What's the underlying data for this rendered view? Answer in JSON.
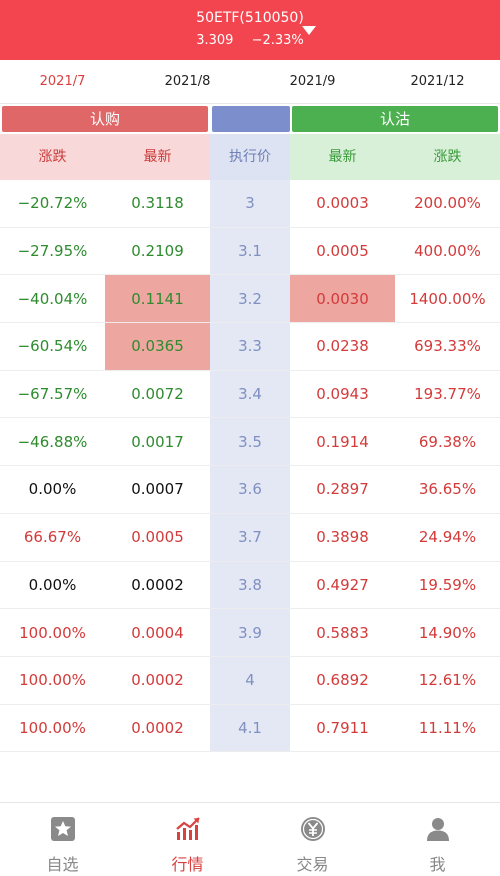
{
  "header": {
    "title": "50ETF(510050)",
    "price": "3.309",
    "change": "−2.33%"
  },
  "months": [
    "2021/7",
    "2021/8",
    "2021/9",
    "2021/12"
  ],
  "bands": {
    "call": "认购",
    "put": "认沽"
  },
  "columns": {
    "call_change": "涨跌",
    "call_latest": "最新",
    "strike": "执行价",
    "put_latest": "最新",
    "put_change": "涨跌"
  },
  "rows": [
    {
      "call_change": "−20.72%",
      "call_latest": "0.3118",
      "strike": "3",
      "put_latest": "0.0003",
      "put_change": "200.00%"
    },
    {
      "call_change": "−27.95%",
      "call_latest": "0.2109",
      "strike": "3.1",
      "put_latest": "0.0005",
      "put_change": "400.00%"
    },
    {
      "call_change": "−40.04%",
      "call_latest": "0.1141",
      "strike": "3.2",
      "put_latest": "0.0030",
      "put_change": "1400.00%"
    },
    {
      "call_change": "−60.54%",
      "call_latest": "0.0365",
      "strike": "3.3",
      "put_latest": "0.0238",
      "put_change": "693.33%"
    },
    {
      "call_change": "−67.57%",
      "call_latest": "0.0072",
      "strike": "3.4",
      "put_latest": "0.0943",
      "put_change": "193.77%"
    },
    {
      "call_change": "−46.88%",
      "call_latest": "0.0017",
      "strike": "3.5",
      "put_latest": "0.1914",
      "put_change": "69.38%"
    },
    {
      "call_change": "0.00%",
      "call_latest": "0.0007",
      "strike": "3.6",
      "put_latest": "0.2897",
      "put_change": "36.65%"
    },
    {
      "call_change": "66.67%",
      "call_latest": "0.0005",
      "strike": "3.7",
      "put_latest": "0.3898",
      "put_change": "24.94%"
    },
    {
      "call_change": "0.00%",
      "call_latest": "0.0002",
      "strike": "3.8",
      "put_latest": "0.4927",
      "put_change": "19.59%"
    },
    {
      "call_change": "100.00%",
      "call_latest": "0.0004",
      "strike": "3.9",
      "put_latest": "0.5883",
      "put_change": "14.90%"
    },
    {
      "call_change": "100.00%",
      "call_latest": "0.0002",
      "strike": "4",
      "put_latest": "0.6892",
      "put_change": "12.61%"
    },
    {
      "call_change": "100.00%",
      "call_latest": "0.0002",
      "strike": "4.1",
      "put_latest": "0.7911",
      "put_change": "11.11%"
    }
  ],
  "tabs": [
    {
      "label": "自选",
      "icon": "star-icon"
    },
    {
      "label": "行情",
      "icon": "chart-icon"
    },
    {
      "label": "交易",
      "icon": "yen-coin-icon"
    },
    {
      "label": "我",
      "icon": "user-icon"
    }
  ],
  "colors": {
    "accent": "#f2454f",
    "up": "#d33a3a",
    "down": "#2e8b2e",
    "neutral": "#111111"
  }
}
